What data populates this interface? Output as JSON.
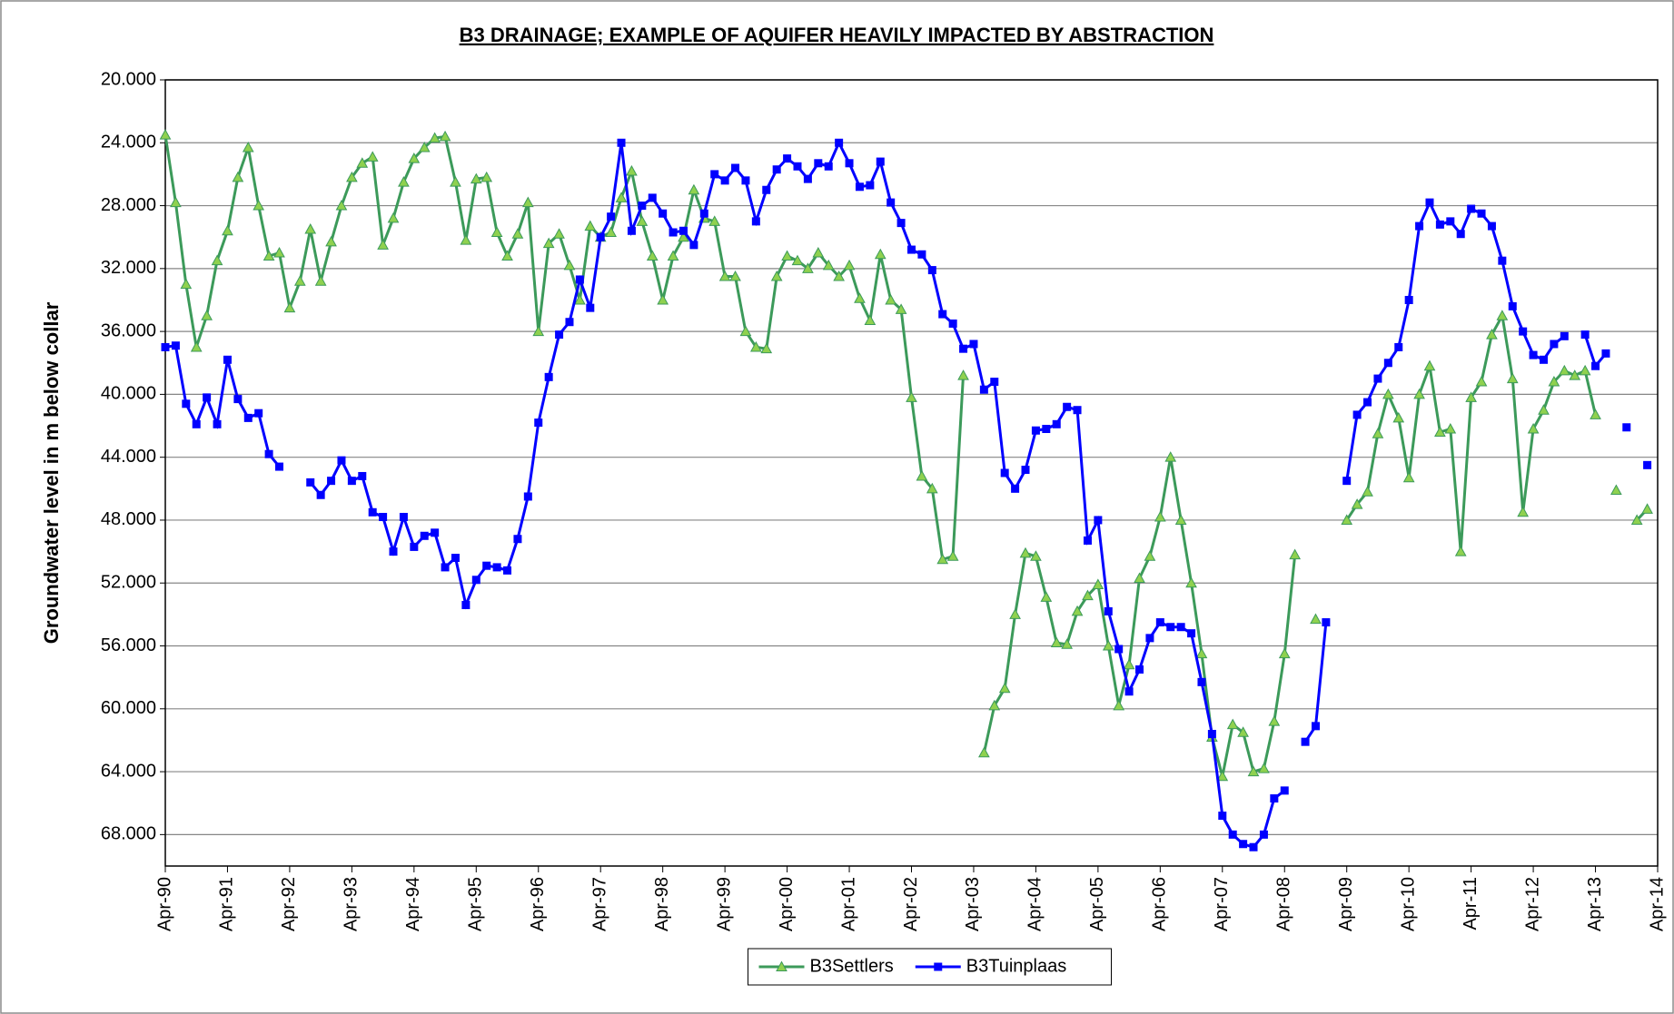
{
  "chart_data": {
    "type": "line",
    "title": "B3 DRAINAGE; EXAMPLE OF AQUIFER HEAVILY IMPACTED BY ABSTRACTION",
    "y_label": "Groundwater level in m below collar",
    "x": [
      "1990-04",
      "1990-06",
      "1990-08",
      "1990-10",
      "1990-12",
      "1991-02",
      "1991-04",
      "1991-06",
      "1991-08",
      "1991-10",
      "1991-12",
      "1992-02",
      "1992-04",
      "1992-06",
      "1992-08",
      "1992-10",
      "1992-12",
      "1993-02",
      "1993-04",
      "1993-06",
      "1993-08",
      "1993-10",
      "1993-12",
      "1994-02",
      "1994-04",
      "1994-06",
      "1994-08",
      "1994-10",
      "1994-12",
      "1995-02",
      "1995-04",
      "1995-06",
      "1995-08",
      "1995-10",
      "1995-12",
      "1996-02",
      "1996-04",
      "1996-06",
      "1996-08",
      "1996-10",
      "1996-12",
      "1997-02",
      "1997-04",
      "1997-06",
      "1997-08",
      "1997-10",
      "1997-12",
      "1998-02",
      "1998-04",
      "1998-06",
      "1998-08",
      "1998-10",
      "1998-12",
      "1999-02",
      "1999-04",
      "1999-06",
      "1999-08",
      "1999-10",
      "1999-12",
      "2000-02",
      "2000-04",
      "2000-06",
      "2000-08",
      "2000-10",
      "2000-12",
      "2001-02",
      "2001-04",
      "2001-06",
      "2001-08",
      "2001-10",
      "2001-12",
      "2002-02",
      "2002-04",
      "2002-06",
      "2002-08",
      "2002-10",
      "2002-12",
      "2003-02",
      "2003-04",
      "2003-06",
      "2003-08",
      "2003-10",
      "2003-12",
      "2004-02",
      "2004-04",
      "2004-06",
      "2004-08",
      "2004-10",
      "2004-12",
      "2005-02",
      "2005-04",
      "2005-06",
      "2005-08",
      "2005-10",
      "2005-12",
      "2006-02",
      "2006-04",
      "2006-06",
      "2006-08",
      "2006-10",
      "2006-12",
      "2007-02",
      "2007-04",
      "2007-06",
      "2007-08",
      "2007-10",
      "2007-12",
      "2008-02",
      "2008-04",
      "2008-06",
      "2008-08",
      "2008-10",
      "2008-12",
      "2009-02",
      "2009-04",
      "2009-06",
      "2009-08",
      "2009-10",
      "2009-12",
      "2010-02",
      "2010-04",
      "2010-06",
      "2010-08",
      "2010-10",
      "2010-12",
      "2011-02",
      "2011-04",
      "2011-06",
      "2011-08",
      "2011-10",
      "2011-12",
      "2012-02",
      "2012-04",
      "2012-06",
      "2012-08",
      "2012-10",
      "2012-12",
      "2013-02",
      "2013-04",
      "2013-06",
      "2013-08",
      "2013-10",
      "2013-12",
      "2014-02"
    ],
    "series": [
      {
        "name": "B3Settlers",
        "color": "#3c9a5a",
        "marker": "triangle",
        "values": [
          23.5,
          27.8,
          33,
          37,
          35,
          31.5,
          29.6,
          26.2,
          24.3,
          28,
          31.2,
          31,
          34.5,
          32.8,
          29.5,
          32.8,
          30.3,
          28,
          26.2,
          25.3,
          24.9,
          30.5,
          28.8,
          26.5,
          25,
          24.3,
          23.7,
          23.6,
          26.5,
          30.2,
          26.3,
          26.2,
          29.7,
          31.2,
          29.8,
          27.8,
          36,
          30.4,
          29.8,
          31.8,
          34,
          29.3,
          30,
          29.7,
          27.5,
          25.8,
          29,
          31.2,
          34,
          31.2,
          30,
          27,
          28.8,
          29,
          32.5,
          32.5,
          36,
          37,
          37.1,
          32.5,
          31.2,
          31.5,
          32,
          31,
          31.8,
          32.5,
          31.8,
          33.9,
          35.3,
          31.1,
          34,
          34.6,
          40.2,
          45.2,
          46,
          50.5,
          50.3,
          38.8,
          null,
          62.8,
          59.8,
          58.7,
          54,
          50.1,
          50.3,
          52.9,
          55.8,
          55.9,
          53.8,
          52.8,
          52.1,
          56,
          59.8,
          57.2,
          51.7,
          50.3,
          47.8,
          44,
          48,
          52,
          56.5,
          61.8,
          64.3,
          61,
          61.5,
          64,
          63.8,
          60.8,
          56.5,
          50.2,
          null,
          54.3,
          null,
          null,
          48,
          47,
          46.2,
          42.5,
          40,
          41.5,
          45.3,
          40,
          38.2,
          42.4,
          42.2,
          50,
          40.2,
          39.2,
          36.2,
          35,
          39,
          47.5,
          42.2,
          41,
          39.2,
          38.5,
          38.8,
          38.5,
          41.3,
          null,
          46.1,
          null,
          48,
          47.3
        ]
      },
      {
        "name": "B3Tuinplaas",
        "color": "#0000ff",
        "marker": "square",
        "values": [
          37,
          36.9,
          40.6,
          41.9,
          40.2,
          41.9,
          37.8,
          40.3,
          41.5,
          41.2,
          43.8,
          44.6,
          null,
          null,
          45.6,
          46.4,
          45.5,
          44.2,
          45.5,
          45.2,
          47.5,
          47.8,
          50,
          47.8,
          49.7,
          49,
          48.8,
          51,
          50.4,
          53.4,
          51.8,
          50.9,
          51,
          51.2,
          49.2,
          46.5,
          41.8,
          38.9,
          36.2,
          35.4,
          32.7,
          34.5,
          30,
          28.7,
          24,
          29.6,
          28,
          27.5,
          28.5,
          29.7,
          29.6,
          30.5,
          28.5,
          26,
          26.4,
          25.6,
          26.4,
          29,
          27,
          25.7,
          25,
          25.5,
          26.3,
          25.3,
          25.5,
          24,
          25.3,
          26.8,
          26.7,
          25.2,
          27.8,
          29.1,
          30.8,
          31.1,
          32.1,
          34.9,
          35.5,
          37.1,
          36.8,
          39.7,
          39.2,
          45,
          46,
          44.8,
          42.3,
          42.2,
          41.9,
          40.8,
          41,
          49.3,
          48,
          53.8,
          56.2,
          58.9,
          57.5,
          55.5,
          54.5,
          54.8,
          54.8,
          55.2,
          58.3,
          61.6,
          66.8,
          68,
          68.6,
          68.8,
          68,
          65.7,
          65.2,
          null,
          62.1,
          61.1,
          54.5,
          null,
          45.5,
          41.3,
          40.5,
          39,
          38,
          37,
          34,
          29.3,
          27.8,
          29.2,
          29,
          29.8,
          28.2,
          28.5,
          29.3,
          31.5,
          34.4,
          36,
          37.5,
          37.8,
          36.8,
          36.3,
          null,
          36.2,
          38.2,
          37.4,
          null,
          42.1,
          null,
          44.5
        ]
      }
    ],
    "xlim": [
      "1990-04",
      "2014-04"
    ],
    "xticks": [
      {
        "value": "1990-04",
        "label": "Apr-90"
      },
      {
        "value": "1991-04",
        "label": "Apr-91"
      },
      {
        "value": "1992-04",
        "label": "Apr-92"
      },
      {
        "value": "1993-04",
        "label": "Apr-93"
      },
      {
        "value": "1994-04",
        "label": "Apr-94"
      },
      {
        "value": "1995-04",
        "label": "Apr-95"
      },
      {
        "value": "1996-04",
        "label": "Apr-96"
      },
      {
        "value": "1997-04",
        "label": "Apr-97"
      },
      {
        "value": "1998-04",
        "label": "Apr-98"
      },
      {
        "value": "1999-04",
        "label": "Apr-99"
      },
      {
        "value": "2000-04",
        "label": "Apr-00"
      },
      {
        "value": "2001-04",
        "label": "Apr-01"
      },
      {
        "value": "2002-04",
        "label": "Apr-02"
      },
      {
        "value": "2003-04",
        "label": "Apr-03"
      },
      {
        "value": "2004-04",
        "label": "Apr-04"
      },
      {
        "value": "2005-04",
        "label": "Apr-05"
      },
      {
        "value": "2006-04",
        "label": "Apr-06"
      },
      {
        "value": "2007-04",
        "label": "Apr-07"
      },
      {
        "value": "2008-04",
        "label": "Apr-08"
      },
      {
        "value": "2009-04",
        "label": "Apr-09"
      },
      {
        "value": "2010-04",
        "label": "Apr-10"
      },
      {
        "value": "2011-04",
        "label": "Apr-11"
      },
      {
        "value": "2012-04",
        "label": "Apr-12"
      },
      {
        "value": "2013-04",
        "label": "Apr-13"
      },
      {
        "value": "2014-04",
        "label": "Apr-14"
      }
    ],
    "ylim": [
      20,
      70
    ],
    "y_reversed": true,
    "yticks": [
      {
        "value": 20,
        "label": "20.000"
      },
      {
        "value": 24,
        "label": "24.000"
      },
      {
        "value": 28,
        "label": "28.000"
      },
      {
        "value": 32,
        "label": "32.000"
      },
      {
        "value": 36,
        "label": "36.000"
      },
      {
        "value": 40,
        "label": "40.000"
      },
      {
        "value": 44,
        "label": "44.000"
      },
      {
        "value": 48,
        "label": "48.000"
      },
      {
        "value": 52,
        "label": "52.000"
      },
      {
        "value": 56,
        "label": "56.000"
      },
      {
        "value": 60,
        "label": "60.000"
      },
      {
        "value": 64,
        "label": "64.000"
      },
      {
        "value": 68,
        "label": "68.000"
      }
    ],
    "grid": true,
    "legend": "bottom"
  }
}
